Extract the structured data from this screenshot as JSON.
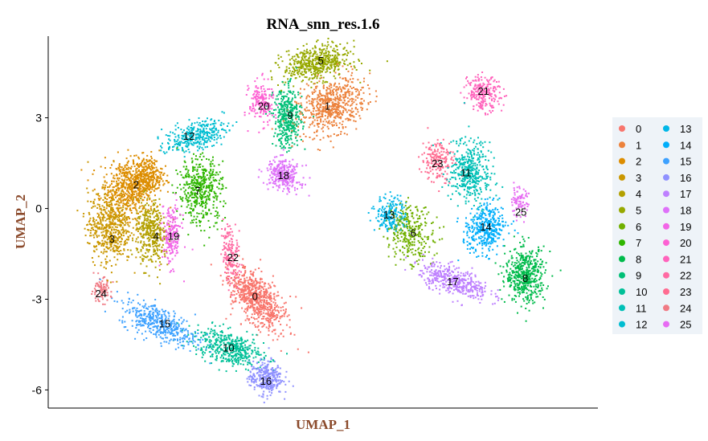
{
  "chart_data": {
    "type": "scatter",
    "title": "RNA_snn_res.1.6",
    "xlabel": "UMAP_1",
    "ylabel": "UMAP_2",
    "axis_title_color": "#8B4A2B",
    "xlim": [
      -10.5,
      14.5
    ],
    "ylim": [
      -6.6,
      5.7
    ],
    "y_ticks": [
      3,
      0,
      -3,
      -6
    ],
    "y_tick_labels": [
      "3",
      "0",
      "-3",
      "-6"
    ],
    "grid": false,
    "legend_position": "right",
    "legend_title": "",
    "clusters": [
      {
        "name": "0",
        "color": "#F8766D",
        "center": [
          -1.1,
          -2.9
        ]
      },
      {
        "name": "1",
        "color": "#EC823C",
        "center": [
          2.2,
          3.4
        ]
      },
      {
        "name": "2",
        "color": "#DD8D00",
        "center": [
          -6.5,
          0.8
        ]
      },
      {
        "name": "3",
        "color": "#CA9700",
        "center": [
          -7.6,
          -1.0
        ]
      },
      {
        "name": "4",
        "color": "#B3A000",
        "center": [
          -5.6,
          -0.9
        ]
      },
      {
        "name": "5",
        "color": "#97A900",
        "center": [
          1.9,
          4.9
        ]
      },
      {
        "name": "6",
        "color": "#71B000",
        "center": [
          6.1,
          -0.8
        ]
      },
      {
        "name": "7",
        "color": "#2FB600",
        "center": [
          -3.7,
          0.6
        ]
      },
      {
        "name": "8",
        "color": "#00BB4B",
        "center": [
          11.2,
          -2.3
        ]
      },
      {
        "name": "9",
        "color": "#00BF76",
        "center": [
          0.5,
          3.1
        ]
      },
      {
        "name": "10",
        "color": "#00C098",
        "center": [
          -2.3,
          -4.6
        ]
      },
      {
        "name": "11",
        "color": "#00C0B7",
        "center": [
          8.5,
          1.2
        ]
      },
      {
        "name": "12",
        "color": "#00BDD1",
        "center": [
          -4.1,
          2.4
        ]
      },
      {
        "name": "13",
        "color": "#00B7E8",
        "center": [
          5.0,
          -0.2
        ]
      },
      {
        "name": "14",
        "color": "#00AEFA",
        "center": [
          9.4,
          -0.6
        ]
      },
      {
        "name": "15",
        "color": "#3DA1FF",
        "center": [
          -5.2,
          -3.8
        ]
      },
      {
        "name": "16",
        "color": "#8F91FF",
        "center": [
          -0.6,
          -5.7
        ]
      },
      {
        "name": "17",
        "color": "#BE80FF",
        "center": [
          7.9,
          -2.4
        ]
      },
      {
        "name": "18",
        "color": "#DE71F9",
        "center": [
          0.2,
          1.1
        ]
      },
      {
        "name": "19",
        "color": "#F265E7",
        "center": [
          -4.8,
          -0.9
        ]
      },
      {
        "name": "20",
        "color": "#FD61D3",
        "center": [
          -0.7,
          3.4
        ]
      },
      {
        "name": "21",
        "color": "#FF63BC",
        "center": [
          9.3,
          3.9
        ]
      },
      {
        "name": "22",
        "color": "#FF6AA3",
        "center": [
          -2.1,
          -1.6
        ]
      },
      {
        "name": "23",
        "color": "#FF6C91",
        "center": [
          7.2,
          1.5
        ]
      },
      {
        "name": "24",
        "color": "#F07A84",
        "center": [
          -8.1,
          -2.8
        ]
      },
      {
        "name": "25",
        "color": "#E76BF3",
        "center": [
          11.0,
          -0.1
        ]
      }
    ]
  }
}
